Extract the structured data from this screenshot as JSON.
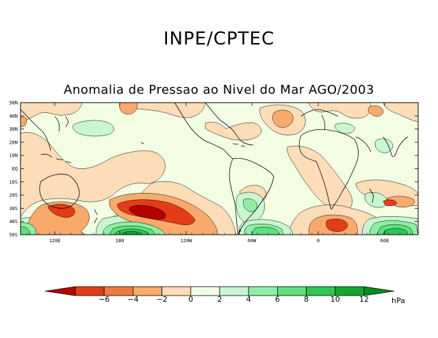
{
  "header": {
    "title": "INPE/CPTEC"
  },
  "map": {
    "title": "Anomalia de Pressao ao Nivel do Mar AGO/2003",
    "lat_labels": [
      "50N",
      "40N",
      "30N",
      "20N",
      "10N",
      "EQ",
      "10S",
      "20S",
      "30S",
      "40S",
      "50S"
    ],
    "lon_labels": [
      "120E",
      "180",
      "120W",
      "60W",
      "0",
      "60E"
    ]
  },
  "colorbar": {
    "labels": [
      "−6",
      "−4",
      "−2",
      "0",
      "2",
      "4",
      "6",
      "8",
      "10",
      "12"
    ],
    "unit": "hPa",
    "colors": [
      "#b40000",
      "#e33d17",
      "#f07a3c",
      "#f8aa6c",
      "#fddcb8",
      "#f2fde4",
      "#c8f5d2",
      "#8eefa4",
      "#5fe07c",
      "#2fc652",
      "#11a830",
      "#0a8a1e"
    ]
  }
}
